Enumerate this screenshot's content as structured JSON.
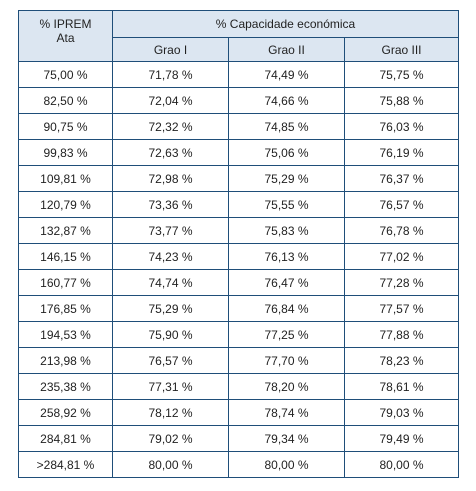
{
  "header": {
    "first_col_line1": "% IPREM",
    "first_col_line2": "Ata",
    "group_title": "% Capacidade económica",
    "grades": [
      "Grao I",
      "Grao II",
      "Grao III"
    ]
  },
  "rows": [
    [
      "75,00 %",
      "71,78 %",
      "74,49 %",
      "75,75 %"
    ],
    [
      "82,50 %",
      "72,04 %",
      "74,66 %",
      "75,88 %"
    ],
    [
      "90,75 %",
      "72,32 %",
      "74,85 %",
      "76,03 %"
    ],
    [
      "99,83 %",
      "72,63 %",
      "75,06 %",
      "76,19 %"
    ],
    [
      "109,81 %",
      "72,98 %",
      "75,29 %",
      "76,37 %"
    ],
    [
      "120,79 %",
      "73,36 %",
      "75,55 %",
      "76,57 %"
    ],
    [
      "132,87 %",
      "73,77 %",
      "75,83 %",
      "76,78 %"
    ],
    [
      "146,15 %",
      "74,23 %",
      "76,13 %",
      "77,02 %"
    ],
    [
      "160,77 %",
      "74,74 %",
      "76,47 %",
      "77,28 %"
    ],
    [
      "176,85 %",
      "75,29 %",
      "76,84 %",
      "77,57 %"
    ],
    [
      "194,53 %",
      "75,90 %",
      "77,25 %",
      "77,88 %"
    ],
    [
      "213,98 %",
      "76,57 %",
      "77,70 %",
      "78,23 %"
    ],
    [
      "235,38 %",
      "77,31 %",
      "78,20 %",
      "78,61 %"
    ],
    [
      "258,92 %",
      "78,12 %",
      "78,74 %",
      "79,03 %"
    ],
    [
      "284,81 %",
      "79,02 %",
      "79,34 %",
      "79,49 %"
    ],
    [
      ">284,81 %",
      "80,00 %",
      "80,00 %",
      "80,00 %"
    ]
  ],
  "colors": {
    "header_background": "#dce6f1",
    "border": "#1f4e79"
  }
}
